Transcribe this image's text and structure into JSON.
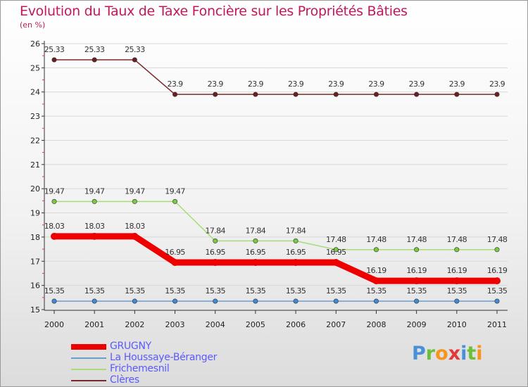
{
  "title": "Evolution du Taux de Taxe Foncière sur les Propriétés Bâties",
  "unit": "(en %)",
  "logo": {
    "text": "Proxiti",
    "colors": [
      "#4a90d9",
      "#6cbf3a",
      "#f7941d",
      "#e03a3a",
      "#4a90d9",
      "#6cbf3a",
      "#f7941d"
    ]
  },
  "chart_data": {
    "type": "line",
    "title": "Evolution du Taux de Taxe Foncière sur les Propriétés Bâties",
    "ylabel": "(en %)",
    "xlabel": "",
    "categories": [
      "2000",
      "2001",
      "2002",
      "2003",
      "2004",
      "2005",
      "2006",
      "2007",
      "2008",
      "2009",
      "2010",
      "2011"
    ],
    "ylim": [
      15,
      26
    ],
    "yticks": [
      "15",
      "16",
      "17",
      "18",
      "19",
      "20",
      "21",
      "22",
      "23",
      "24",
      "25",
      "26"
    ],
    "series": [
      {
        "name": "GRUGNY",
        "color": "#ee0000",
        "thick": true,
        "values": [
          18.03,
          18.03,
          18.03,
          16.95,
          16.95,
          16.95,
          16.95,
          16.95,
          16.19,
          16.19,
          16.19,
          16.19
        ],
        "labels": [
          "18.03",
          "18.03",
          "18.03",
          "16.95",
          "16.95",
          "16.95",
          "16.95",
          "16.95",
          "16.19",
          "16.19",
          "16.19",
          "16.19"
        ]
      },
      {
        "name": "La Houssaye-Béranger",
        "color": "#6a9ecb",
        "marker": "#3d8ad6",
        "values": [
          15.35,
          15.35,
          15.35,
          15.35,
          15.35,
          15.35,
          15.35,
          15.35,
          15.35,
          15.35,
          15.35,
          15.35
        ],
        "labels": [
          "15.35",
          "15.35",
          "15.35",
          "15.35",
          "15.35",
          "15.35",
          "15.35",
          "15.35",
          "15.35",
          "15.35",
          "15.35",
          "15.35"
        ]
      },
      {
        "name": "Frichemesnil",
        "color": "#a8dc78",
        "marker": "#7ac943",
        "values": [
          19.47,
          19.47,
          19.47,
          19.47,
          17.84,
          17.84,
          17.84,
          17.48,
          17.48,
          17.48,
          17.48,
          17.48
        ],
        "labels": [
          "19.47",
          "19.47",
          "19.47",
          "19.47",
          "17.84",
          "17.84",
          "17.84",
          "17.48",
          "17.48",
          "17.48",
          "17.48",
          "17.48"
        ]
      },
      {
        "name": "Clères",
        "color": "#7a2a2a",
        "marker": "#6b1f24",
        "values": [
          25.33,
          25.33,
          25.33,
          23.9,
          23.9,
          23.9,
          23.9,
          23.9,
          23.9,
          23.9,
          23.9,
          23.9
        ],
        "labels": [
          "25.33",
          "25.33",
          "25.33",
          "23.9",
          "23.9",
          "23.9",
          "23.9",
          "23.9",
          "23.9",
          "23.9",
          "23.9",
          "23.9"
        ]
      }
    ]
  }
}
